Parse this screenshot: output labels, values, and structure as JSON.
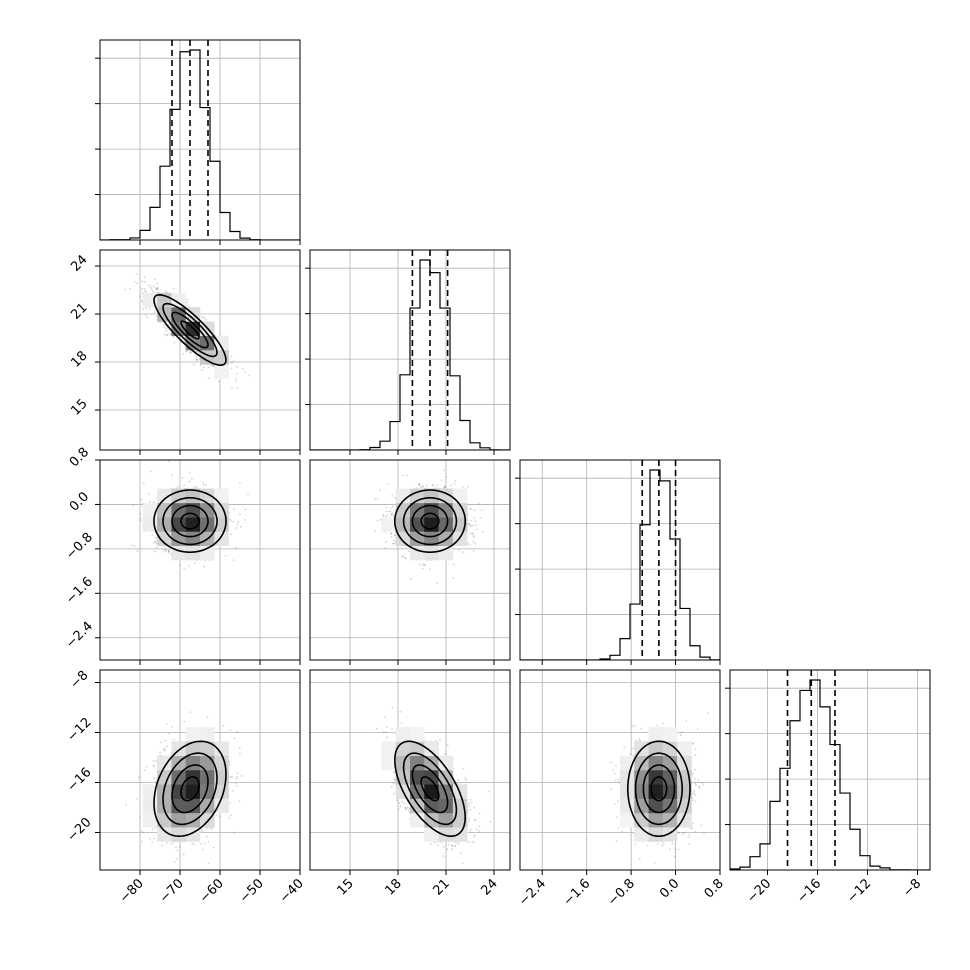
{
  "chart_data": {
    "type": "corner",
    "params": [
      {
        "range": [
          -90,
          -40
        ],
        "ticks": [
          -80,
          -70,
          -60,
          -50,
          -40
        ],
        "tick_labels": [
          "−80",
          "−70",
          "−60",
          "−50",
          "−40"
        ],
        "mean": -67.5,
        "sd": 4.5,
        "quantiles": [
          -72.0,
          -67.5,
          -63.0
        ]
      },
      {
        "range": [
          12.5,
          25.0
        ],
        "ticks": [
          15,
          18,
          21,
          24
        ],
        "tick_labels": [
          "15",
          "18",
          "21",
          "24"
        ],
        "mean": 20.0,
        "sd": 1.1,
        "quantiles": [
          18.9,
          20.0,
          21.1
        ]
      },
      {
        "range": [
          -2.8,
          0.8
        ],
        "ticks": [
          -2.4,
          -1.6,
          -0.8,
          0.0,
          0.8
        ],
        "tick_labels": [
          "−2.4",
          "−1.6",
          "−0.8",
          "0.0",
          "0.8"
        ],
        "mean": -0.3,
        "sd": 0.28,
        "quantiles": [
          -0.6,
          -0.3,
          0.0
        ]
      },
      {
        "range": [
          -23.0,
          -7.0
        ],
        "ticks": [
          -20,
          -16,
          -12,
          -8
        ],
        "tick_labels": [
          "−20",
          "−16",
          "−12",
          "−8"
        ],
        "mean": -16.5,
        "sd": 1.9,
        "quantiles": [
          -18.4,
          -16.5,
          -14.6
        ]
      }
    ],
    "correlations": [
      {
        "row": 1,
        "col": 0,
        "rho": -0.85
      },
      {
        "row": 2,
        "col": 0,
        "rho": 0.0
      },
      {
        "row": 2,
        "col": 1,
        "rho": 0.0
      },
      {
        "row": 3,
        "col": 0,
        "rho": 0.3
      },
      {
        "row": 3,
        "col": 1,
        "rho": -0.6
      },
      {
        "row": 3,
        "col": 2,
        "rho": 0.0
      }
    ],
    "contour_levels_sigma": [
      0.5,
      1.0,
      1.5,
      2.0
    ],
    "grid": true,
    "histogram_bins": 20
  }
}
